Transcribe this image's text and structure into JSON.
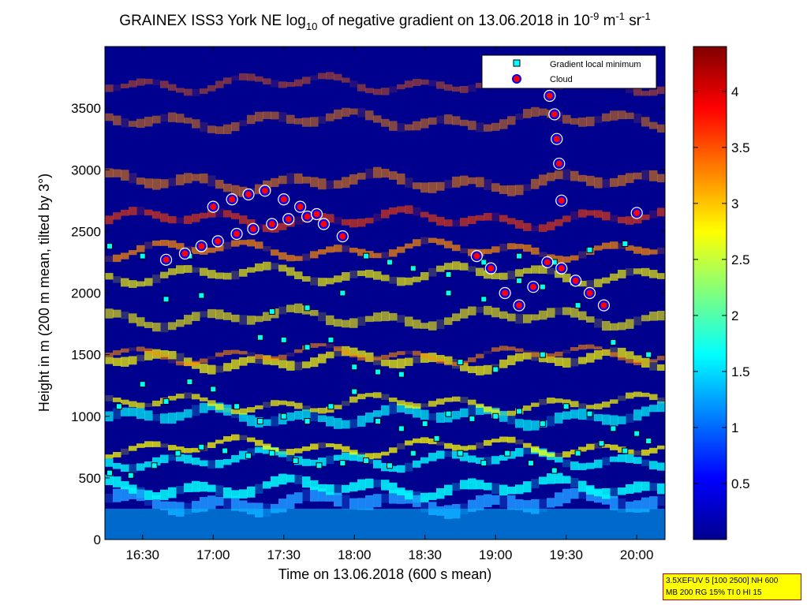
{
  "chart_data": {
    "type": "heatmap",
    "title": {
      "prefix": "GRAINEX ISS3 York NE log",
      "prefix_sub": "10",
      "middle": " of negative gradient on 13.06.2018 in 10",
      "unit_sup1": "-9",
      "unit_m": " m",
      "unit_sup2": "-1",
      "unit_sr": " sr",
      "unit_sup3": "-1"
    },
    "xlabel": "Time on 13.06.2018 (600 s mean)",
    "ylabel": "Height in m (200 m mean, tilted by 3°)",
    "x_ticks": [
      "16:30",
      "17:00",
      "17:30",
      "18:00",
      "18:30",
      "19:00",
      "19:30",
      "20:00"
    ],
    "x_tick_minutes": [
      990,
      1020,
      1050,
      1080,
      1110,
      1140,
      1170,
      1200
    ],
    "xlim_minutes": [
      974,
      1212
    ],
    "y_ticks": [
      0,
      500,
      1000,
      1500,
      2000,
      2500,
      3000,
      3500
    ],
    "ylim": [
      0,
      4000
    ],
    "colorbar": {
      "ticks": [
        0.5,
        1,
        1.5,
        2,
        2.5,
        3,
        3.5,
        4
      ],
      "range": [
        0,
        4.4
      ],
      "colormap": "jet"
    },
    "legend": {
      "position": "top-right",
      "entries": [
        {
          "label": "Gradient local minimum",
          "marker": "square",
          "color": "#00ffff"
        },
        {
          "label": "Cloud",
          "marker": "circle",
          "color": "#ff0000"
        }
      ]
    },
    "layers": [
      {
        "name": "Gradient local minimum",
        "points": [
          [
            976,
            540
          ],
          [
            985,
            520
          ],
          [
            995,
            600
          ],
          [
            1005,
            700
          ],
          [
            1015,
            750
          ],
          [
            1025,
            720
          ],
          [
            1035,
            680
          ],
          [
            1045,
            700
          ],
          [
            1055,
            640
          ],
          [
            1065,
            600
          ],
          [
            1075,
            620
          ],
          [
            1085,
            640
          ],
          [
            1095,
            600
          ],
          [
            1105,
            700
          ],
          [
            1115,
            820
          ],
          [
            1125,
            700
          ],
          [
            1135,
            620
          ],
          [
            1145,
            700
          ],
          [
            1155,
            620
          ],
          [
            1165,
            560
          ],
          [
            1175,
            700
          ],
          [
            1185,
            780
          ],
          [
            1195,
            720
          ],
          [
            1205,
            800
          ],
          [
            980,
            1080
          ],
          [
            990,
            1260
          ],
          [
            1000,
            1120
          ],
          [
            1010,
            1280
          ],
          [
            1020,
            1220
          ],
          [
            1030,
            1080
          ],
          [
            1040,
            960
          ],
          [
            1050,
            1000
          ],
          [
            1060,
            960
          ],
          [
            1070,
            1080
          ],
          [
            1080,
            1200
          ],
          [
            1090,
            960
          ],
          [
            1100,
            900
          ],
          [
            1110,
            940
          ],
          [
            1120,
            1020
          ],
          [
            1130,
            980
          ],
          [
            1140,
            1000
          ],
          [
            1150,
            1040
          ],
          [
            1160,
            940
          ],
          [
            1170,
            1080
          ],
          [
            1180,
            1020
          ],
          [
            1190,
            900
          ],
          [
            1200,
            860
          ],
          [
            1040,
            1640
          ],
          [
            1050,
            1620
          ],
          [
            1060,
            1560
          ],
          [
            1070,
            1620
          ],
          [
            1080,
            1400
          ],
          [
            1090,
            1360
          ],
          [
            1100,
            1340
          ],
          [
            1125,
            1440
          ],
          [
            1140,
            1380
          ],
          [
            1160,
            1500
          ],
          [
            1190,
            1600
          ],
          [
            1205,
            1500
          ],
          [
            976,
            2380
          ],
          [
            990,
            2300
          ],
          [
            1000,
            2250
          ],
          [
            1010,
            2300
          ],
          [
            1085,
            2300
          ],
          [
            1095,
            2250
          ],
          [
            1105,
            2200
          ],
          [
            1120,
            2150
          ],
          [
            1135,
            2250
          ],
          [
            1150,
            2300
          ],
          [
            1165,
            2250
          ],
          [
            1180,
            2350
          ],
          [
            1195,
            2400
          ],
          [
            1000,
            1950
          ],
          [
            1015,
            1980
          ],
          [
            1045,
            1850
          ],
          [
            1060,
            1880
          ],
          [
            1075,
            2000
          ],
          [
            1120,
            2000
          ],
          [
            1135,
            1950
          ],
          [
            1150,
            2100
          ],
          [
            1160,
            2050
          ],
          [
            1175,
            1900
          ]
        ]
      },
      {
        "name": "Cloud",
        "points": [
          [
            1000,
            2270
          ],
          [
            1008,
            2320
          ],
          [
            1015,
            2380
          ],
          [
            1022,
            2420
          ],
          [
            1030,
            2480
          ],
          [
            1037,
            2520
          ],
          [
            1045,
            2560
          ],
          [
            1052,
            2600
          ],
          [
            1060,
            2620
          ],
          [
            1067,
            2560
          ],
          [
            1075,
            2460
          ],
          [
            1020,
            2700
          ],
          [
            1028,
            2760
          ],
          [
            1035,
            2800
          ],
          [
            1042,
            2830
          ],
          [
            1050,
            2760
          ],
          [
            1057,
            2700
          ],
          [
            1064,
            2640
          ],
          [
            1132,
            2300
          ],
          [
            1138,
            2200
          ],
          [
            1144,
            2000
          ],
          [
            1150,
            1900
          ],
          [
            1156,
            2050
          ],
          [
            1162,
            2250
          ],
          [
            1168,
            2200
          ],
          [
            1174,
            2100
          ],
          [
            1180,
            2000
          ],
          [
            1186,
            1900
          ],
          [
            1163,
            3600
          ],
          [
            1165,
            3450
          ],
          [
            1166,
            3250
          ],
          [
            1167,
            3050
          ],
          [
            1168,
            2750
          ],
          [
            1200,
            2650
          ]
        ]
      }
    ]
  },
  "annotation_box": {
    "line1": "3.5XEFUV 5 [100 2500] NH 600",
    "line2": "MB 200 RG 15% TI 0 HI 15"
  }
}
